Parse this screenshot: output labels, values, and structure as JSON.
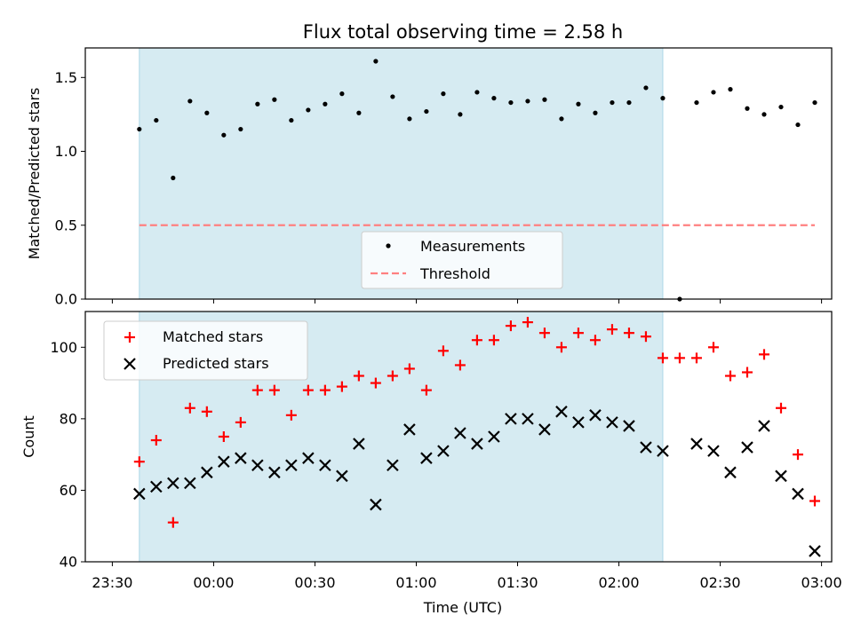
{
  "title": "Flux total observing time = 2.58 h",
  "colors": {
    "span": "#add8e6",
    "measurement": "#000000",
    "threshold": "#ff8080",
    "matched": "#ff0000",
    "predicted": "#000000"
  },
  "chart_data": [
    {
      "type": "scatter",
      "title": "Flux total observing time = 2.58 h",
      "xlabel": "",
      "ylabel": "Matched/Predicted stars",
      "xlim_minutes_since_2330": [
        -8,
        213
      ],
      "ylim": [
        0,
        1.7
      ],
      "yticks": [
        "0.0",
        "0.5",
        "1.0",
        "1.5"
      ],
      "grid": false,
      "legend_location": "lower center",
      "shaded_span_minutes": [
        8,
        163
      ],
      "threshold": {
        "name": "Threshold",
        "value": 0.5,
        "style": "dashed",
        "x_range": [
          8,
          208
        ]
      },
      "series": [
        {
          "name": "Measurements",
          "marker": "dot",
          "x": [
            8,
            13,
            18,
            23,
            28,
            33,
            38,
            43,
            48,
            53,
            58,
            63,
            68,
            73,
            78,
            83,
            88,
            93,
            98,
            103,
            108,
            113,
            118,
            123,
            128,
            133,
            138,
            143,
            148,
            153,
            158,
            163,
            168,
            173,
            178,
            183,
            188,
            193,
            198,
            203,
            208
          ],
          "y": [
            1.15,
            1.21,
            0.82,
            1.34,
            1.26,
            1.11,
            1.15,
            1.32,
            1.35,
            1.21,
            1.28,
            1.32,
            1.39,
            1.26,
            1.61,
            1.37,
            1.22,
            1.27,
            1.39,
            1.25,
            1.4,
            1.36,
            1.33,
            1.34,
            1.35,
            1.22,
            1.32,
            1.26,
            1.33,
            1.33,
            1.43,
            1.36,
            0.0,
            1.33,
            1.4,
            1.42,
            1.29,
            1.25,
            1.3,
            1.18,
            1.33
          ]
        }
      ]
    },
    {
      "type": "scatter",
      "xlabel": "Time (UTC)",
      "ylabel": "Count",
      "xlim_minutes_since_2330": [
        -8,
        213
      ],
      "ylim": [
        40,
        110
      ],
      "yticks": [
        "40",
        "60",
        "80",
        "100"
      ],
      "xticks": [
        "23:30",
        "00:00",
        "00:30",
        "01:00",
        "01:30",
        "02:00",
        "02:30",
        "03:00"
      ],
      "grid": false,
      "legend_location": "upper left",
      "shaded_span_minutes": [
        8,
        163
      ],
      "series": [
        {
          "name": "Matched stars",
          "marker": "plus",
          "x": [
            8,
            13,
            18,
            23,
            28,
            33,
            38,
            43,
            48,
            53,
            58,
            63,
            68,
            73,
            78,
            83,
            88,
            93,
            98,
            103,
            108,
            113,
            118,
            123,
            128,
            133,
            138,
            143,
            148,
            153,
            158,
            163,
            168,
            173,
            178,
            183,
            188,
            193,
            198,
            203,
            208
          ],
          "y": [
            68,
            74,
            51,
            83,
            82,
            75,
            79,
            88,
            88,
            81,
            88,
            88,
            89,
            92,
            90,
            92,
            94,
            88,
            99,
            95,
            102,
            102,
            106,
            107,
            104,
            100,
            104,
            102,
            105,
            104,
            103,
            97,
            97,
            97,
            100,
            92,
            93,
            98,
            83,
            70,
            57
          ]
        },
        {
          "name": "Predicted stars",
          "marker": "x",
          "x": [
            8,
            13,
            18,
            23,
            28,
            33,
            38,
            43,
            48,
            53,
            58,
            63,
            68,
            73,
            78,
            83,
            88,
            93,
            98,
            103,
            108,
            113,
            118,
            123,
            128,
            133,
            138,
            143,
            148,
            153,
            158,
            163,
            173,
            178,
            183,
            188,
            193,
            198,
            203,
            208
          ],
          "y": [
            59,
            61,
            62,
            62,
            65,
            68,
            69,
            67,
            65,
            67,
            69,
            67,
            64,
            73,
            56,
            67,
            77,
            69,
            71,
            76,
            73,
            75,
            80,
            80,
            77,
            82,
            79,
            81,
            79,
            78,
            72,
            71,
            73,
            71,
            65,
            72,
            78,
            64,
            59,
            43
          ]
        }
      ]
    }
  ]
}
